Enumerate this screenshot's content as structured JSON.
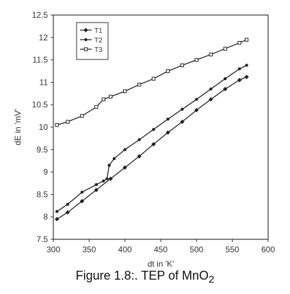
{
  "caption": {
    "text": "Figure 1.8:. TEP of MnO",
    "subscript": "2"
  },
  "chart_data": {
    "type": "line",
    "xlabel": "dt in 'K'",
    "ylabel": "dE in 'mV'",
    "xlim": [
      300,
      600
    ],
    "ylim": [
      7.5,
      12.5
    ],
    "x_ticks": [
      "300",
      "350",
      "400",
      "450",
      "500",
      "550",
      "600"
    ],
    "y_ticks": [
      "7.5",
      "8",
      "8.5",
      "9",
      "9.5",
      "10",
      "10.5",
      "11",
      "11.5",
      "12",
      "12.5"
    ],
    "grid": false,
    "legend_position": "top-left",
    "series": [
      {
        "name": "T1",
        "marker": "diamond",
        "x": [
          305,
          320,
          340,
          360,
          380,
          400,
          420,
          440,
          460,
          480,
          500,
          520,
          540,
          560,
          570
        ],
        "y": [
          7.95,
          8.1,
          8.35,
          8.6,
          8.85,
          9.1,
          9.35,
          9.62,
          9.88,
          10.12,
          10.38,
          10.62,
          10.85,
          11.05,
          11.12
        ]
      },
      {
        "name": "T2",
        "marker": "dot",
        "x": [
          305,
          320,
          340,
          360,
          370,
          375,
          378,
          385,
          400,
          420,
          440,
          460,
          480,
          500,
          520,
          540,
          560,
          570
        ],
        "y": [
          8.12,
          8.28,
          8.55,
          8.72,
          8.8,
          8.85,
          9.15,
          9.3,
          9.5,
          9.72,
          9.95,
          10.18,
          10.4,
          10.62,
          10.85,
          11.08,
          11.3,
          11.38
        ]
      },
      {
        "name": "T3",
        "marker": "square",
        "x": [
          305,
          320,
          340,
          360,
          370,
          380,
          400,
          420,
          440,
          460,
          480,
          500,
          520,
          540,
          560,
          570
        ],
        "y": [
          10.05,
          10.12,
          10.25,
          10.45,
          10.62,
          10.68,
          10.8,
          10.95,
          11.08,
          11.25,
          11.38,
          11.5,
          11.62,
          11.75,
          11.88,
          11.95
        ]
      }
    ],
    "colors": {
      "axis": "#333333",
      "line": "#222222",
      "text": "#333333"
    }
  }
}
